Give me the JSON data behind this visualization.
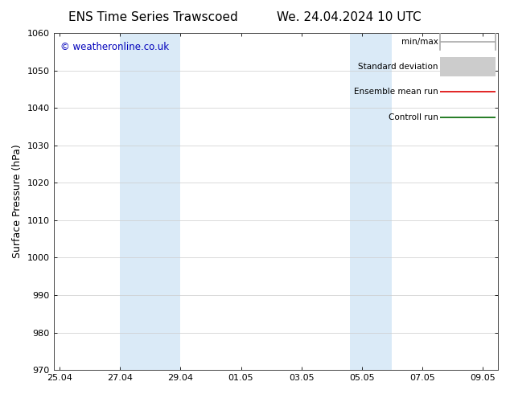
{
  "title_left": "ENS Time Series Trawscoed",
  "title_right": "We. 24.04.2024 10 UTC",
  "ylabel": "Surface Pressure (hPa)",
  "ylim": [
    970,
    1060
  ],
  "yticks": [
    970,
    980,
    990,
    1000,
    1010,
    1020,
    1030,
    1040,
    1050,
    1060
  ],
  "xtick_labels": [
    "25.04",
    "27.04",
    "29.04",
    "01.05",
    "03.05",
    "05.05",
    "07.05",
    "09.05"
  ],
  "xtick_positions": [
    0,
    2,
    4,
    6,
    8,
    10,
    12,
    14
  ],
  "xlim": [
    -0.2,
    14.5
  ],
  "shaded_bands": [
    {
      "x_start": 2.0,
      "x_end": 4.0
    },
    {
      "x_start": 9.6,
      "x_end": 11.0
    }
  ],
  "shaded_color": "#daeaf7",
  "watermark": "© weatheronline.co.uk",
  "watermark_color": "#0000bb",
  "legend_items": [
    {
      "label": "min/max",
      "color": "#aaaaaa",
      "lw": 1.2,
      "kind": "minmax"
    },
    {
      "label": "Standard deviation",
      "color": "#cccccc",
      "lw": 7,
      "kind": "thick"
    },
    {
      "label": "Ensemble mean run",
      "color": "#dd0000",
      "lw": 1.2,
      "kind": "line"
    },
    {
      "label": "Controll run",
      "color": "#006600",
      "lw": 1.2,
      "kind": "line"
    }
  ],
  "bg_color": "#ffffff",
  "grid_color": "#cccccc",
  "title_fontsize": 11,
  "tick_fontsize": 8,
  "ylabel_fontsize": 9,
  "legend_fontsize": 7.5
}
